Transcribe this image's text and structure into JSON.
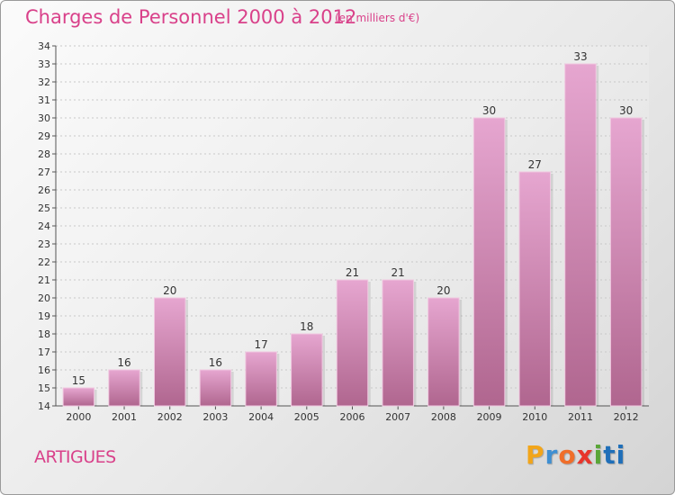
{
  "chart_data": {
    "type": "bar",
    "title": "Charges de Personnel 2000 à 2012",
    "subtitle": "(en milliers d'€)",
    "categories": [
      "2000",
      "2001",
      "2002",
      "2003",
      "2004",
      "2005",
      "2006",
      "2007",
      "2008",
      "2009",
      "2010",
      "2011",
      "2012"
    ],
    "values": [
      15,
      16,
      20,
      16,
      17,
      18,
      21,
      21,
      20,
      30,
      27,
      33,
      30
    ],
    "xlabel": "",
    "ylabel": "",
    "ylim": [
      14,
      34
    ],
    "yticks": [
      14,
      15,
      16,
      17,
      18,
      19,
      20,
      21,
      22,
      23,
      24,
      25,
      26,
      27,
      28,
      29,
      30,
      31,
      32,
      33,
      34
    ],
    "grid": true,
    "bar_color": "#d98ab8"
  },
  "footer": {
    "commune": "ARTIGUES",
    "logo": [
      "P",
      "r",
      "o",
      "x",
      "i",
      "ti"
    ]
  }
}
